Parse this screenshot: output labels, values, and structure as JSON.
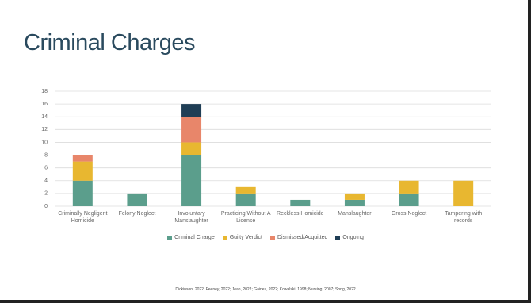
{
  "title": "Criminal Charges",
  "chart_data": {
    "type": "stacked-bar",
    "categories": [
      "Criminally Negligent Homicide",
      "Felony Neglect",
      "Involuntary Manslaughter",
      "Practicing Without A License",
      "Reckless Homicide",
      "Manslaughter",
      "Gross Neglect",
      "Tampering with records"
    ],
    "series": [
      {
        "name": "Criminal Charge",
        "color": "#5b9e8c",
        "values": [
          4,
          2,
          8,
          2,
          1,
          1,
          2,
          0
        ]
      },
      {
        "name": "Guilty Verdict",
        "color": "#e8b730",
        "values": [
          3,
          0,
          2,
          1,
          0,
          1,
          2,
          4
        ]
      },
      {
        "name": "Dismissed/Acquitted",
        "color": "#e8866a",
        "values": [
          1,
          0,
          4,
          0,
          0,
          0,
          0,
          0
        ]
      },
      {
        "name": "Ongoing",
        "color": "#1f3e55",
        "values": [
          0,
          0,
          2,
          0,
          0,
          0,
          0,
          0
        ]
      }
    ],
    "ylim": [
      0,
      18
    ],
    "yticks": [
      0,
      2,
      4,
      6,
      8,
      10,
      12,
      14,
      16,
      18
    ],
    "grid": true
  },
  "source": "Dickinson, 2022; Feeney, 2022; Jean, 2022; Gaines, 2022; Kowalski, 1998; Nursing, 2007; Song, 2022"
}
